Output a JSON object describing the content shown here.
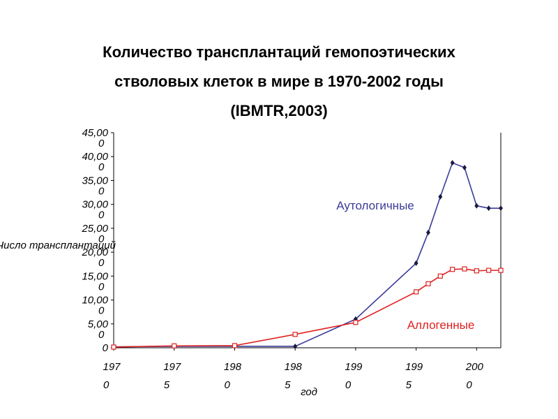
{
  "chart_data": {
    "type": "line",
    "title": [
      "Количество трансплантаций гемопоэтических",
      "стволовых клеток в мире в 1970-2002 годы",
      "(IBMTR,2003)"
    ],
    "y_label": "Число трансплантаций",
    "x_label": "год",
    "x": [
      1970,
      1975,
      1980,
      1985,
      1990,
      1995,
      1996,
      1997,
      1998,
      1999,
      2000,
      2001,
      2002
    ],
    "series": [
      {
        "name": "Аутологичные",
        "color": "#3a3a9a",
        "marker": "diamond",
        "values": [
          200,
          300,
          300,
          300,
          6000,
          17700,
          24100,
          31600,
          38700,
          37700,
          29700,
          29200,
          29200
        ]
      },
      {
        "name": "Аллогенные",
        "color": "#e02020",
        "marker": "square",
        "values": [
          150,
          400,
          450,
          2800,
          5300,
          11700,
          13400,
          15000,
          16400,
          16500,
          16100,
          16200,
          16200
        ]
      }
    ],
    "xlim": [
      1970,
      2002
    ],
    "xticks": [
      {
        "value": 1970,
        "label": "1970"
      },
      {
        "value": 1975,
        "label": "1975"
      },
      {
        "value": 1980,
        "label": "1980"
      },
      {
        "value": 1985,
        "label": "1985"
      },
      {
        "value": 1990,
        "label": "1990"
      },
      {
        "value": 1995,
        "label": "1995"
      },
      {
        "value": 2000,
        "label": "2000"
      }
    ],
    "ylim": [
      0,
      45000
    ],
    "yticks": [
      0,
      {
        "value": 5000,
        "label": "5,000"
      },
      {
        "value": 10000,
        "label": "10,000"
      },
      {
        "value": 15000,
        "label": "15,000"
      },
      {
        "value": 20000,
        "label": "20,000"
      },
      {
        "value": 25000,
        "label": "25,000"
      },
      {
        "value": 30000,
        "label": "30,000"
      },
      {
        "value": 35000,
        "label": "35,000"
      },
      {
        "value": 40000,
        "label": "40,000"
      },
      {
        "value": 45000,
        "label": "45,000"
      }
    ]
  }
}
